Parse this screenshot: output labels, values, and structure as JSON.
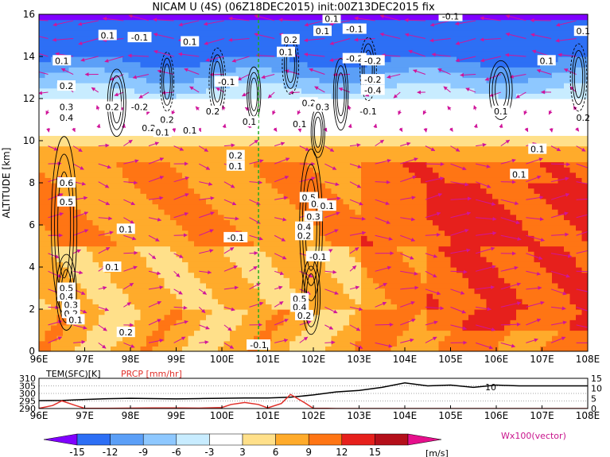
{
  "chart_data": [
    {
      "type": "heatmap",
      "title": "NICAM U (4S) (06Z18DEC2015) init:00Z13DEC2015 fix",
      "xlabel": "",
      "ylabel": "ALTITUDE [km]",
      "x_ticks": [
        "96E",
        "97E",
        "98E",
        "99E",
        "100E",
        "101E",
        "102E",
        "103E",
        "104E",
        "105E",
        "106E",
        "107E",
        "108E"
      ],
      "y_ticks": [
        "0",
        "2",
        "4",
        "6",
        "8",
        "10",
        "12",
        "14",
        "16"
      ],
      "xlim": [
        96,
        108
      ],
      "ylim": [
        0,
        16
      ],
      "marker_line_x": 100.8,
      "contour_labels": [
        {
          "text": "0.1",
          "x": 97.5,
          "y": 15.0
        },
        {
          "text": "-0.1",
          "x": 98.2,
          "y": 14.9
        },
        {
          "text": "0.1",
          "x": 99.3,
          "y": 14.7
        },
        {
          "text": "0.1",
          "x": 96.5,
          "y": 13.8
        },
        {
          "text": "0.2",
          "x": 96.6,
          "y": 12.6
        },
        {
          "text": "0.3",
          "x": 96.6,
          "y": 11.6
        },
        {
          "text": "0.4",
          "x": 96.6,
          "y": 11.1
        },
        {
          "text": "0.2",
          "x": 97.6,
          "y": 11.6
        },
        {
          "text": "-0.2",
          "x": 98.2,
          "y": 11.6
        },
        {
          "text": "0.2",
          "x": 98.8,
          "y": 11.0
        },
        {
          "text": "0.2",
          "x": 98.4,
          "y": 10.6
        },
        {
          "text": "0.1",
          "x": 98.7,
          "y": 10.4
        },
        {
          "text": "0.1",
          "x": 99.3,
          "y": 10.5
        },
        {
          "text": "0.2",
          "x": 99.8,
          "y": 11.4
        },
        {
          "text": "-0.1",
          "x": 100.1,
          "y": 12.8
        },
        {
          "text": "0.1",
          "x": 100.6,
          "y": 10.9
        },
        {
          "text": "0.2",
          "x": 100.3,
          "y": 9.3
        },
        {
          "text": "0.1",
          "x": 100.3,
          "y": 8.8
        },
        {
          "text": "0.6",
          "x": 96.6,
          "y": 8.0
        },
        {
          "text": "0.5",
          "x": 96.6,
          "y": 7.1
        },
        {
          "text": "0.1",
          "x": 97.9,
          "y": 5.8
        },
        {
          "text": "-0.1",
          "x": 100.3,
          "y": 5.4
        },
        {
          "text": "0.1",
          "x": 97.6,
          "y": 4.0
        },
        {
          "text": "0.5",
          "x": 96.6,
          "y": 3.0
        },
        {
          "text": "0.4",
          "x": 96.6,
          "y": 2.6
        },
        {
          "text": "0.3",
          "x": 96.7,
          "y": 2.2
        },
        {
          "text": "0.2",
          "x": 96.7,
          "y": 1.8
        },
        {
          "text": "0.1",
          "x": 96.8,
          "y": 1.5
        },
        {
          "text": "0.2",
          "x": 97.9,
          "y": 0.9
        },
        {
          "text": "-0.1",
          "x": 100.8,
          "y": 0.3
        },
        {
          "text": "0.1",
          "x": 102.4,
          "y": 15.8
        },
        {
          "text": "0.1",
          "x": 102.2,
          "y": 15.2
        },
        {
          "text": "-0.1",
          "x": 102.9,
          "y": 15.3
        },
        {
          "text": "-0.1",
          "x": 105.0,
          "y": 15.9
        },
        {
          "text": "0.2",
          "x": 101.5,
          "y": 14.8
        },
        {
          "text": "0.1",
          "x": 101.4,
          "y": 14.2
        },
        {
          "text": "-0.2",
          "x": 102.9,
          "y": 13.9
        },
        {
          "text": "-0.2",
          "x": 103.3,
          "y": 13.8
        },
        {
          "text": "-0.2",
          "x": 103.3,
          "y": 12.9
        },
        {
          "text": "-0.4",
          "x": 103.3,
          "y": 12.4
        },
        {
          "text": "-0.1",
          "x": 103.2,
          "y": 11.4
        },
        {
          "text": "0.2",
          "x": 101.9,
          "y": 11.8
        },
        {
          "text": "0.3",
          "x": 102.2,
          "y": 11.6
        },
        {
          "text": "0.1",
          "x": 101.7,
          "y": 10.8
        },
        {
          "text": "0.5",
          "x": 101.9,
          "y": 7.3
        },
        {
          "text": "0.4",
          "x": 102.1,
          "y": 7.0
        },
        {
          "text": "0.1",
          "x": 102.3,
          "y": 6.9
        },
        {
          "text": "0.3",
          "x": 102.0,
          "y": 6.4
        },
        {
          "text": "0.4",
          "x": 101.8,
          "y": 5.9
        },
        {
          "text": "0.2",
          "x": 101.8,
          "y": 5.5
        },
        {
          "text": "-0.1",
          "x": 102.1,
          "y": 4.5
        },
        {
          "text": "0.5",
          "x": 101.7,
          "y": 2.5
        },
        {
          "text": "0.4",
          "x": 101.7,
          "y": 2.1
        },
        {
          "text": "0.2",
          "x": 101.8,
          "y": 1.7
        },
        {
          "text": "0.1",
          "x": 106.1,
          "y": 11.4
        },
        {
          "text": "0.1",
          "x": 107.1,
          "y": 13.8
        },
        {
          "text": "0.2",
          "x": 107.9,
          "y": 11.1
        },
        {
          "text": "0.1",
          "x": 106.9,
          "y": 9.6
        },
        {
          "text": "0.1",
          "x": 106.5,
          "y": 8.4
        },
        {
          "text": "0.1",
          "x": 107.9,
          "y": 15.2
        }
      ]
    },
    {
      "type": "line",
      "labels": {
        "tem": "TEM(SFC)[K]",
        "prcp": "PRCP [mm/hr]"
      },
      "y_left_ticks": [
        "310",
        "305",
        "300",
        "295",
        "290"
      ],
      "y_right_ticks": [
        "15",
        "10",
        "5",
        "0"
      ],
      "x_ticks": [
        "96E",
        "97E",
        "98E",
        "99E",
        "100E",
        "101E",
        "102E",
        "103E",
        "104E",
        "105E",
        "106E",
        "107E",
        "108E"
      ],
      "xlim": [
        96,
        108
      ],
      "annotation": "10",
      "series": [
        {
          "name": "TEM(SFC)[K]",
          "x": [
            96,
            96.5,
            97,
            97.5,
            98,
            98.5,
            99,
            99.5,
            100,
            100.5,
            101,
            101.5,
            102,
            102.5,
            103,
            103.5,
            104,
            104.5,
            105,
            105.5,
            106,
            106.5,
            107,
            107.5,
            108
          ],
          "values": [
            295.2,
            295.3,
            296.0,
            296.5,
            296.8,
            296.6,
            296.4,
            296.6,
            296.8,
            297.0,
            297.0,
            297.5,
            299.0,
            301.0,
            302.0,
            304.0,
            307.0,
            305.0,
            305.5,
            304.0,
            305.5,
            305.0,
            305.0,
            305.0,
            305.0
          ]
        },
        {
          "name": "PRCP [mm/hr]",
          "x": [
            96,
            96.3,
            96.5,
            96.8,
            97,
            97.5,
            98,
            98.5,
            99,
            99.5,
            100,
            100.2,
            100.5,
            100.8,
            101,
            101.3,
            101.5,
            101.8,
            102,
            102.3,
            102.5,
            103,
            104,
            105,
            106,
            107,
            108
          ],
          "values": [
            0.1,
            1.5,
            3.8,
            1.5,
            0.1,
            0.1,
            0.2,
            0.3,
            0.3,
            0.2,
            0.5,
            2.0,
            3.0,
            2.0,
            0.3,
            2.5,
            7.0,
            3.0,
            0.1,
            0.1,
            0.0,
            0.0,
            0.0,
            0.0,
            0.0,
            0.0,
            0.0
          ]
        }
      ]
    }
  ],
  "colorbar": {
    "ticks": [
      "-15",
      "-12",
      "-9",
      "-6",
      "-3",
      "3",
      "6",
      "9",
      "12",
      "15"
    ],
    "unit": "[m/s]",
    "colors": [
      "#8000ff",
      "#2d6ff5",
      "#5b9ff7",
      "#8ec8ff",
      "#c8ecff",
      "#ffffff",
      "#ffe08a",
      "#ffab2b",
      "#ff7514",
      "#e6201c",
      "#b40f1a",
      "#e60f8c"
    ]
  },
  "vector_label": "Wx100(vector)"
}
